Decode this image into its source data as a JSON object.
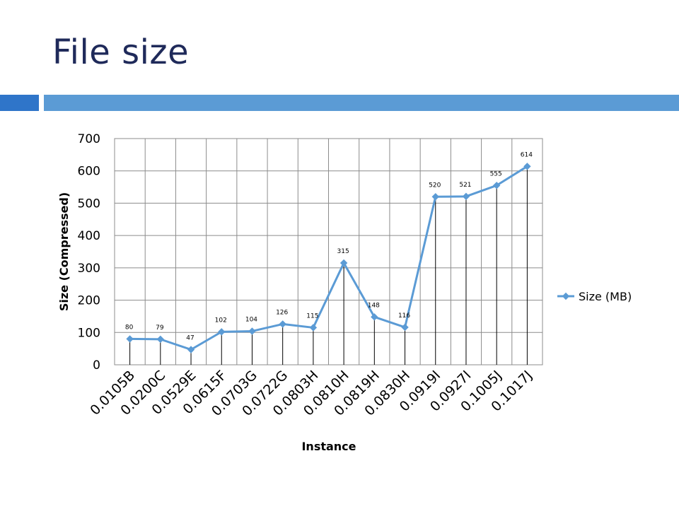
{
  "slide": {
    "title": "File size",
    "accent_color": "#5B9BD5",
    "accent_dark": "#2F75C9",
    "title_color": "#1F2A5A"
  },
  "chart_data": {
    "type": "line",
    "categories": [
      "0.0105B",
      "0.0200C",
      "0.0529E",
      "0.0615F",
      "0.0703G",
      "0.0722G",
      "0.0803H",
      "0.0810H",
      "0.0819H",
      "0.0830H",
      "0.0919I",
      "0.0927I",
      "0.1005J",
      "0.1017J"
    ],
    "series": [
      {
        "name": "Size (MB)",
        "values": [
          80,
          79,
          47,
          102,
          104,
          126,
          115,
          315,
          148,
          116,
          520,
          521,
          555,
          614
        ],
        "color": "#5B9BD5",
        "marker": "diamond"
      }
    ],
    "data_labels": [
      "80",
      "79",
      "47",
      "102",
      "104",
      "126",
      "115",
      "315",
      "148",
      "116",
      "520",
      "521",
      "555",
      "614"
    ],
    "xlabel": "Instance",
    "ylabel": "Size (Compressed)",
    "ylim": [
      0,
      700
    ],
    "yticks": [
      0,
      100,
      200,
      300,
      400,
      500,
      600,
      700
    ],
    "grid": true,
    "drop_lines": true,
    "legend_position": "right"
  }
}
